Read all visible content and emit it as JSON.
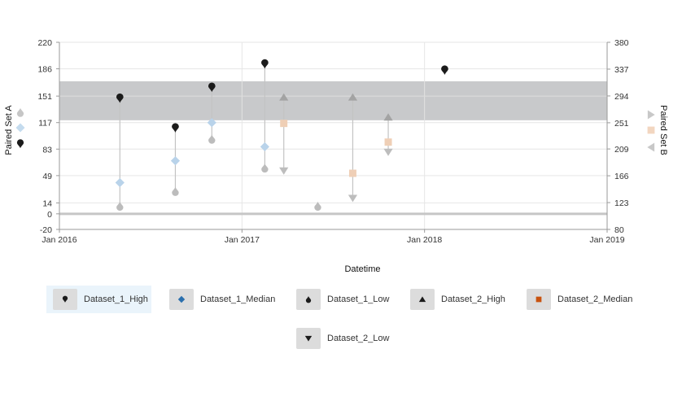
{
  "chart_data": {
    "type": "scatter",
    "xlabel": "Datetime",
    "ylabel_left": "Paired Set A",
    "ylabel_right": "Paired Set B",
    "x_ticks": [
      "Jan 2016",
      "Jan 2017",
      "Jan 2018",
      "Jan 2019"
    ],
    "x_range": [
      "2016-01-01",
      "2019-01-01"
    ],
    "y_left_ticks": [
      -20,
      0,
      14,
      49,
      83,
      117,
      151,
      186,
      220
    ],
    "y_left_range": [
      -20,
      220
    ],
    "y_right_ticks": [
      80,
      123,
      166,
      209,
      251,
      294,
      337,
      380
    ],
    "y_right_range": [
      80,
      380
    ],
    "band": {
      "axis": "left",
      "from": 120,
      "to": 170,
      "color": "#c8c9cb"
    },
    "zero_line": {
      "axis": "left",
      "value": 0,
      "color": "#c6c6c6"
    },
    "series": [
      {
        "name": "Dataset_1_High",
        "axis": "left",
        "marker": "pin",
        "color": "#1b1b1b",
        "points": [
          [
            "2016-05-01",
            148
          ],
          [
            "2016-08-20",
            110
          ],
          [
            "2016-11-01",
            162
          ],
          [
            "2017-02-15",
            192
          ],
          [
            "2018-02-10",
            184
          ]
        ]
      },
      {
        "name": "Dataset_1_Median",
        "axis": "left",
        "marker": "diamond",
        "color": "#b9d3ea",
        "points": [
          [
            "2016-05-01",
            40
          ],
          [
            "2016-08-20",
            68
          ],
          [
            "2016-11-01",
            117
          ],
          [
            "2017-02-15",
            86
          ]
        ]
      },
      {
        "name": "Dataset_1_Low",
        "axis": "left",
        "marker": "drop",
        "color": "#bcbcbc",
        "points": [
          [
            "2016-05-01",
            10
          ],
          [
            "2016-08-20",
            29
          ],
          [
            "2016-11-01",
            96
          ],
          [
            "2017-02-15",
            59
          ],
          [
            "2017-06-01",
            10
          ]
        ]
      },
      {
        "name": "Dataset_2_High",
        "axis": "right",
        "marker": "triangle-up",
        "color": "#a3a3a3",
        "points": [
          [
            "2017-03-25",
            292
          ],
          [
            "2017-08-10",
            292
          ],
          [
            "2017-10-20",
            260
          ]
        ]
      },
      {
        "name": "Dataset_2_Median",
        "axis": "right",
        "marker": "square",
        "color": "#efcfb6",
        "points": [
          [
            "2017-03-25",
            250
          ],
          [
            "2017-08-10",
            170
          ],
          [
            "2017-10-20",
            220
          ]
        ]
      },
      {
        "name": "Dataset_2_Low",
        "axis": "right",
        "marker": "triangle-down",
        "color": "#bdbdbd",
        "points": [
          [
            "2017-03-25",
            174
          ],
          [
            "2017-08-10",
            130
          ],
          [
            "2017-10-20",
            204
          ]
        ]
      }
    ],
    "connectors": [
      {
        "axis": "left",
        "x": "2016-05-01",
        "from": 10,
        "to": 148
      },
      {
        "axis": "left",
        "x": "2016-08-20",
        "from": 29,
        "to": 110
      },
      {
        "axis": "left",
        "x": "2016-11-01",
        "from": 96,
        "to": 162
      },
      {
        "axis": "left",
        "x": "2017-02-15",
        "from": 59,
        "to": 192
      },
      {
        "axis": "right",
        "x": "2017-03-25",
        "from": 174,
        "to": 292
      },
      {
        "axis": "right",
        "x": "2017-08-10",
        "from": 130,
        "to": 292
      },
      {
        "axis": "right",
        "x": "2017-10-20",
        "from": 204,
        "to": 260
      }
    ],
    "legend_placement": "bottom",
    "legend_active": "Dataset_1_High"
  },
  "legend": {
    "items": [
      {
        "label": "Dataset_1_High",
        "icon": "pin-icon",
        "color": "#1b1b1b"
      },
      {
        "label": "Dataset_1_Median",
        "icon": "diamond-icon",
        "color": "#2a6fad"
      },
      {
        "label": "Dataset_1_Low",
        "icon": "drop-icon",
        "color": "#1b1b1b"
      },
      {
        "label": "Dataset_2_High",
        "icon": "triangle-up-icon",
        "color": "#1b1b1b"
      },
      {
        "label": "Dataset_2_Median",
        "icon": "square-icon",
        "color": "#c8520f"
      },
      {
        "label": "Dataset_2_Low",
        "icon": "triangle-down-icon",
        "color": "#1b1b1b"
      }
    ]
  },
  "side_legend": {
    "left": [
      {
        "icon": "drop-icon",
        "color": "#c6c6c6"
      },
      {
        "icon": "diamond-icon",
        "color": "#c4dbee"
      },
      {
        "icon": "pin-icon",
        "color": "#1b1b1b"
      }
    ],
    "right": [
      {
        "icon": "triangle-right-icon",
        "color": "#c8c8c8"
      },
      {
        "icon": "square-icon",
        "color": "#f2d6c0"
      },
      {
        "icon": "triangle-left-icon",
        "color": "#c8c8c8"
      }
    ]
  }
}
